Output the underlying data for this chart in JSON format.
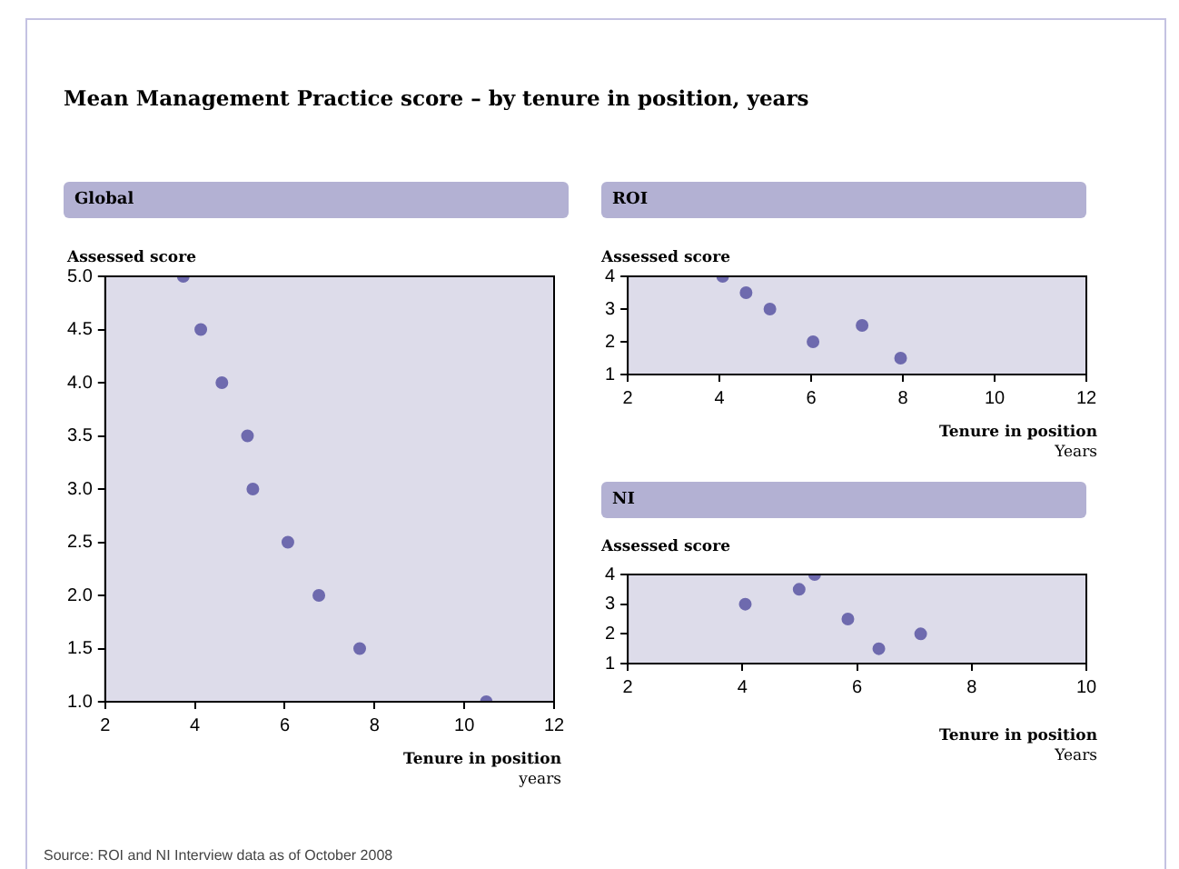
{
  "chart_data": [
    {
      "type": "scatter",
      "title": "Mean Management Practice score – by tenure in position, years",
      "subtitle": "Global",
      "ylabel": "Assessed score",
      "xlabel": "Tenure in position\nyears",
      "marker": "circle",
      "annotations": [
        "Source: ROI and NI Interview data as of October 2008"
      ],
      "x": [
        3.74,
        4.13,
        4.6,
        5.17,
        5.29,
        6.07,
        6.76,
        7.67,
        10.49
      ],
      "series": [
        {
          "color": "#6e6aae",
          "values": [
            5,
            4.5,
            4,
            3.5,
            3,
            2.5,
            2,
            1.5,
            1
          ]
        }
      ],
      "xlim": [
        2,
        12
      ],
      "xticks": [
        2,
        4,
        6,
        8,
        10,
        12
      ],
      "ylim": [
        1,
        5
      ],
      "yticks": [
        {
          "value": 1,
          "label": "1.0"
        },
        {
          "value": 1.5,
          "label": "1.5"
        },
        {
          "value": 2,
          "label": "2.0"
        },
        {
          "value": 2.5,
          "label": "2.5"
        },
        {
          "value": 3,
          "label": "3.0"
        },
        {
          "value": 3.5,
          "label": "3.5"
        },
        {
          "value": 4,
          "label": "4.0"
        },
        {
          "value": 4.5,
          "label": "4.5"
        },
        {
          "value": 5,
          "label": "5.0"
        }
      ]
    },
    {
      "type": "scatter",
      "title": "ROI",
      "ylabel": "Assessed score",
      "xlabel": "Tenure in position\nYears",
      "marker": "circle",
      "x": [
        4.07,
        4.58,
        5.1,
        6.04,
        7.11,
        7.95
      ],
      "series": [
        {
          "color": "#6e6aae",
          "values": [
            4,
            3.5,
            3,
            2,
            2.5,
            1.5
          ]
        }
      ],
      "xlim": [
        2,
        12
      ],
      "xticks": [
        2,
        4,
        6,
        8,
        10,
        12
      ],
      "ylim": [
        1,
        4
      ],
      "yticks": [
        1,
        2,
        3,
        4
      ]
    },
    {
      "type": "scatter",
      "title": "NI",
      "ylabel": "Assessed score",
      "xlabel": "Tenure in position\nYears",
      "marker": "circle",
      "x": [
        4.05,
        4.99,
        5.26,
        5.84,
        6.38,
        7.11
      ],
      "series": [
        {
          "color": "#6e6aae",
          "values": [
            3,
            3.5,
            4,
            2.5,
            1.5,
            2
          ]
        }
      ],
      "xlim": [
        2,
        10
      ],
      "xticks": [
        2,
        4,
        6,
        8,
        10
      ],
      "ylim": [
        1,
        4
      ],
      "yticks": [
        1,
        2,
        3,
        4
      ]
    }
  ]
}
